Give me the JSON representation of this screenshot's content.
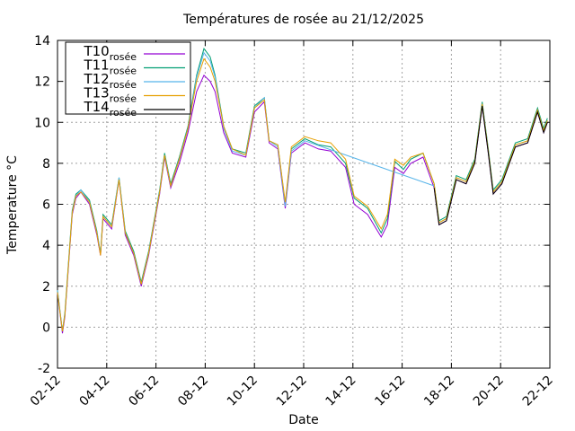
{
  "chart_data": {
    "type": "line",
    "title": "Températures de rosée au 21/12/2025",
    "x_label": "Date",
    "y_label": "Temperature °C",
    "x": [
      2.0,
      2.2,
      2.3,
      2.6,
      2.75,
      2.95,
      3.3,
      3.6,
      3.75,
      3.85,
      4.2,
      4.5,
      4.75,
      5.1,
      5.4,
      5.7,
      5.85,
      6.15,
      6.35,
      6.6,
      6.95,
      7.3,
      7.65,
      7.95,
      8.2,
      8.4,
      8.75,
      9.1,
      9.65,
      10.0,
      10.4,
      10.6,
      10.95,
      11.25,
      11.5,
      12.05,
      12.6,
      13.1,
      13.7,
      14.05,
      14.6,
      15.15,
      15.4,
      15.7,
      16.05,
      16.35,
      16.85,
      17.3,
      17.5,
      17.8,
      18.2,
      18.6,
      18.95,
      19.25,
      19.5,
      19.7,
      20.05,
      20.6,
      21.1,
      21.5,
      21.75,
      21.9
    ],
    "series": [
      {
        "name": "T10",
        "subscript": "rosée",
        "color": "#9400d3",
        "values": [
          1.7,
          -0.3,
          0.5,
          5.5,
          6.3,
          6.6,
          6.0,
          4.5,
          3.5,
          5.3,
          4.8,
          7.2,
          4.5,
          3.5,
          2.0,
          3.5,
          4.5,
          6.5,
          8.3,
          6.8,
          8.0,
          9.5,
          11.5,
          12.3,
          12.0,
          11.5,
          9.5,
          8.5,
          8.3,
          10.5,
          11.0,
          9.0,
          8.7,
          5.8,
          8.5,
          9.0,
          8.7,
          8.6,
          7.8,
          6.0,
          5.5,
          4.4,
          5.0,
          7.8,
          7.5,
          8.0,
          8.3,
          6.8,
          5.0,
          5.2,
          7.2,
          7.0,
          8.0,
          10.8,
          8.5,
          6.5,
          7.0,
          8.8,
          9.0,
          10.5,
          9.5,
          10.0
        ]
      },
      {
        "name": "T11",
        "subscript": "rosée",
        "color": "#009e73",
        "values": [
          1.8,
          -0.2,
          0.7,
          5.7,
          6.5,
          6.7,
          6.2,
          4.7,
          3.6,
          5.5,
          5.0,
          7.3,
          4.7,
          3.7,
          2.2,
          3.7,
          4.7,
          6.7,
          8.5,
          7.0,
          8.3,
          9.8,
          12.3,
          13.6,
          13.2,
          12.3,
          9.8,
          8.7,
          8.5,
          10.8,
          11.2,
          9.1,
          8.9,
          6.0,
          8.7,
          9.2,
          8.9,
          8.8,
          8.0,
          6.3,
          5.8,
          4.6,
          5.3,
          8.1,
          7.7,
          8.2,
          8.5,
          7.0,
          5.2,
          5.4,
          7.4,
          7.2,
          8.2,
          11.0,
          8.7,
          6.7,
          7.2,
          9.0,
          9.2,
          10.7,
          9.7,
          10.2
        ]
      },
      {
        "name": "T12",
        "subscript": "rosée",
        "color": "#56b4e9",
        "x": [
          2.0,
          2.2,
          2.3,
          2.6,
          2.75,
          2.95,
          3.3,
          3.6,
          3.75,
          3.85,
          4.2,
          4.5,
          4.75,
          5.1,
          5.4,
          5.7,
          5.85,
          6.15,
          6.35,
          6.6,
          6.95,
          7.3,
          7.65,
          7.95,
          8.2,
          8.4,
          8.75,
          9.1,
          9.65,
          10.0,
          10.4,
          10.6,
          10.95,
          11.25,
          11.5,
          12.05,
          17.3,
          17.5,
          17.8,
          18.2,
          18.6,
          18.95,
          19.25,
          19.5,
          19.7,
          20.05,
          20.6,
          21.1,
          21.5,
          21.75,
          21.9
        ],
        "values": [
          1.8,
          -0.2,
          0.6,
          5.6,
          6.4,
          6.7,
          6.1,
          4.6,
          3.6,
          5.4,
          4.9,
          7.3,
          4.6,
          3.6,
          2.1,
          3.6,
          4.6,
          6.6,
          8.4,
          6.9,
          8.2,
          9.7,
          12.2,
          13.4,
          13.0,
          12.2,
          9.7,
          8.6,
          8.4,
          10.7,
          11.2,
          9.1,
          8.8,
          5.9,
          8.6,
          9.1,
          6.9,
          5.1,
          5.3,
          7.3,
          7.1,
          8.1,
          10.9,
          8.6,
          6.6,
          7.1,
          8.9,
          9.1,
          10.6,
          9.6,
          10.1
        ]
      },
      {
        "name": "T13",
        "subscript": "rosée",
        "color": "#e69f00",
        "values": [
          1.7,
          -0.2,
          0.6,
          5.6,
          6.4,
          6.6,
          6.1,
          4.6,
          3.5,
          5.4,
          4.9,
          7.2,
          4.6,
          3.6,
          2.1,
          3.6,
          4.6,
          6.6,
          8.4,
          6.9,
          8.2,
          9.7,
          12.0,
          13.1,
          12.7,
          12.0,
          9.8,
          8.7,
          8.4,
          10.7,
          11.1,
          9.1,
          8.9,
          6.1,
          8.8,
          9.3,
          9.1,
          9.0,
          8.2,
          6.4,
          5.9,
          4.8,
          5.5,
          8.2,
          7.9,
          8.3,
          8.5,
          7.0,
          5.1,
          5.3,
          7.3,
          7.1,
          8.1,
          10.9,
          8.6,
          6.6,
          7.1,
          8.9,
          9.1,
          10.6,
          9.6,
          10.1
        ]
      },
      {
        "name": "T14",
        "subscript": "rosée",
        "color": "#000000",
        "x": [
          17.3,
          17.5,
          17.8,
          18.2,
          18.6,
          18.95,
          19.25,
          19.5,
          19.7,
          20.05,
          20.6,
          21.1,
          21.5,
          21.75,
          21.9
        ],
        "values": [
          6.8,
          5.0,
          5.2,
          7.2,
          7.0,
          8.0,
          10.8,
          8.5,
          6.5,
          7.0,
          8.8,
          9.0,
          10.5,
          9.5,
          10.0
        ]
      }
    ],
    "xlim": [
      2,
      22
    ],
    "xticks": [
      {
        "value": 2,
        "label": "02-12"
      },
      {
        "value": 4,
        "label": "04-12"
      },
      {
        "value": 6,
        "label": "06-12"
      },
      {
        "value": 8,
        "label": "08-12"
      },
      {
        "value": 10,
        "label": "10-12"
      },
      {
        "value": 12,
        "label": "12-12"
      },
      {
        "value": 14,
        "label": "14-12"
      },
      {
        "value": 16,
        "label": "16-12"
      },
      {
        "value": 18,
        "label": "18-12"
      },
      {
        "value": 20,
        "label": "20-12"
      },
      {
        "value": 22,
        "label": "22-12"
      }
    ],
    "ylim": [
      -2,
      14
    ],
    "yticks": [
      -2,
      0,
      2,
      4,
      6,
      8,
      10,
      12,
      14
    ],
    "grid": true,
    "legend": "top-left"
  }
}
